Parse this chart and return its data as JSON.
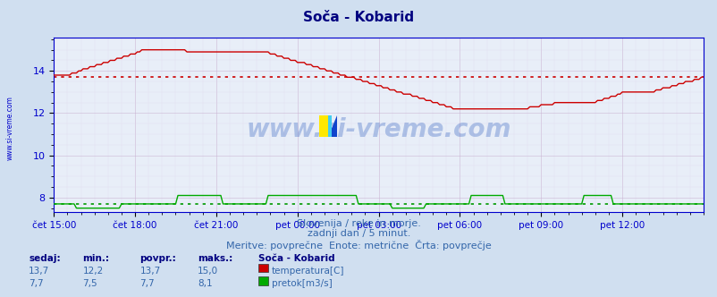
{
  "title": "Soča - Kobarid",
  "bg_color": "#d0dff0",
  "plot_bg_color": "#e8eef8",
  "grid_color_major": "#c8b8d8",
  "grid_color_minor": "#dcd0e8",
  "title_color": "#000080",
  "axis_color": "#0000cc",
  "text_color": "#3366aa",
  "xlim": [
    0,
    288
  ],
  "ylim": [
    7.3,
    15.6
  ],
  "yticks": [
    8,
    10,
    12,
    14
  ],
  "xtick_labels": [
    "čet 15:00",
    "čet 18:00",
    "čet 21:00",
    "pet 00:00",
    "pet 03:00",
    "pet 06:00",
    "pet 09:00",
    "pet 12:00"
  ],
  "xtick_positions": [
    0,
    36,
    72,
    108,
    144,
    180,
    216,
    252
  ],
  "temp_avg": 13.7,
  "temp_color": "#cc0000",
  "flow_color": "#00aa00",
  "flow_avg_color": "#009900",
  "watermark": "www.si-vreme.com",
  "watermark_color": "#2255bb",
  "left_label": "www.si-vreme.com",
  "footer_line1": "Slovenija / reke in morje.",
  "footer_line2": "zadnji dan / 5 minut.",
  "footer_line3": "Meritve: povprečne  Enote: metrične  Črta: povprečje",
  "legend_title": "Soča - Kobarid",
  "legend_row1": [
    "13,7",
    "12,2",
    "13,7",
    "15,0",
    "temperatura[C]"
  ],
  "legend_row2": [
    "7,7",
    "7,5",
    "7,7",
    "8,1",
    "pretok[m3/s]"
  ],
  "legend_header": [
    "sedaj:",
    "min.:",
    "povpr.:",
    "maks.:"
  ]
}
